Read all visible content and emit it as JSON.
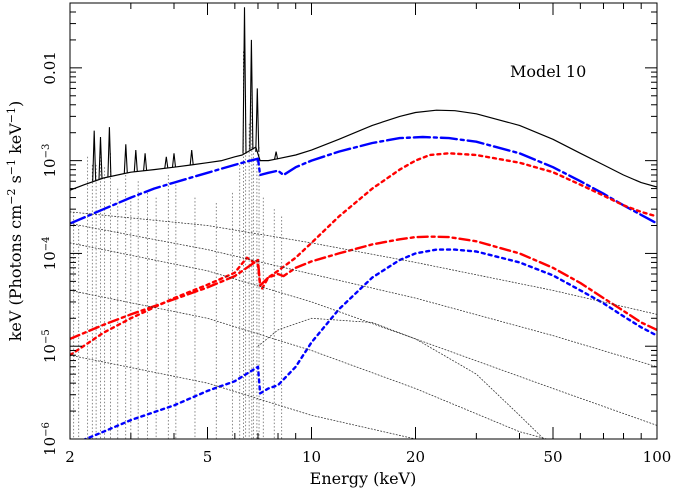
{
  "chart_data": {
    "type": "line",
    "annotation": "Model 10",
    "xlabel": "Energy (keV)",
    "ylabel": {
      "prefix": "keV (Photons cm",
      "sup1": "−2",
      "mid1": " s",
      "sup2": "−1",
      "mid2": " keV",
      "sup3": "−1",
      "suffix": ")"
    },
    "x_scale": "log",
    "y_scale": "log",
    "xlim": [
      2,
      100
    ],
    "ylim": [
      1e-06,
      0.05
    ],
    "x_ticks": [
      {
        "value": 2,
        "label": "2"
      },
      {
        "value": 5,
        "label": "5"
      },
      {
        "value": 10,
        "label": "10"
      },
      {
        "value": 20,
        "label": "20"
      },
      {
        "value": 50,
        "label": "50"
      },
      {
        "value": 100,
        "label": "100"
      }
    ],
    "y_ticks": [
      {
        "value": 1e-06,
        "base": "10",
        "exp": "−6"
      },
      {
        "value": 1e-05,
        "base": "10",
        "exp": "−5"
      },
      {
        "value": 0.0001,
        "base": "10",
        "exp": "−4"
      },
      {
        "value": 0.001,
        "base": "10",
        "exp": "−3"
      },
      {
        "value": 0.01,
        "base": "0.01",
        "exp": ""
      }
    ],
    "grid": false,
    "legend": "none",
    "series": [
      {
        "id": "total",
        "color": "#000000",
        "style": "solid",
        "points": [
          [
            2,
            0.00048
          ],
          [
            2.2,
            0.00055
          ],
          [
            2.5,
            0.00065
          ],
          [
            3,
            0.00075
          ],
          [
            3.5,
            0.0008
          ],
          [
            4,
            0.00085
          ],
          [
            4.5,
            0.0009
          ],
          [
            5,
            0.00095
          ],
          [
            5.5,
            0.001
          ],
          [
            6,
            0.0011
          ],
          [
            6.3,
            0.00115
          ],
          [
            6.9,
            0.0014
          ],
          [
            7.1,
            0.001
          ],
          [
            7.5,
            0.001
          ],
          [
            8,
            0.00105
          ],
          [
            9,
            0.00115
          ],
          [
            10,
            0.0013
          ],
          [
            12,
            0.0017
          ],
          [
            15,
            0.0024
          ],
          [
            18,
            0.003
          ],
          [
            20,
            0.0033
          ],
          [
            23,
            0.0035
          ],
          [
            26,
            0.00345
          ],
          [
            30,
            0.0032
          ],
          [
            40,
            0.0024
          ],
          [
            50,
            0.0017
          ],
          [
            60,
            0.0012
          ],
          [
            70,
            0.0009
          ],
          [
            80,
            0.0007
          ],
          [
            90,
            0.00058
          ],
          [
            100,
            0.00052
          ]
        ],
        "spikes": [
          [
            2.35,
            0.0021
          ],
          [
            2.45,
            0.0018
          ],
          [
            2.6,
            0.0023
          ],
          [
            2.9,
            0.0015
          ],
          [
            3.1,
            0.0013
          ],
          [
            3.3,
            0.0012
          ],
          [
            3.8,
            0.0011
          ],
          [
            4.0,
            0.0012
          ],
          [
            4.5,
            0.0013
          ],
          [
            6.4,
            0.045
          ],
          [
            6.7,
            0.02
          ],
          [
            6.97,
            0.006
          ],
          [
            7.9,
            0.00125
          ]
        ]
      },
      {
        "id": "blue-upper",
        "color": "#0000ff",
        "style": "longdash",
        "points": [
          [
            2,
            0.00021
          ],
          [
            2.5,
            0.0003
          ],
          [
            3,
            0.0004
          ],
          [
            3.5,
            0.0005
          ],
          [
            4,
            0.00058
          ],
          [
            4.5,
            0.00066
          ],
          [
            5,
            0.00074
          ],
          [
            5.5,
            0.00082
          ],
          [
            6,
            0.0009
          ],
          [
            6.5,
            0.00098
          ],
          [
            7,
            0.00105
          ],
          [
            7.1,
            0.0007
          ],
          [
            7.5,
            0.00074
          ],
          [
            8,
            0.00078
          ],
          [
            8.3,
            0.0007
          ],
          [
            9,
            0.00085
          ],
          [
            10,
            0.001
          ],
          [
            12,
            0.00125
          ],
          [
            15,
            0.00155
          ],
          [
            18,
            0.00175
          ],
          [
            21,
            0.0018
          ],
          [
            25,
            0.00175
          ],
          [
            30,
            0.0016
          ],
          [
            40,
            0.0012
          ],
          [
            50,
            0.00085
          ],
          [
            60,
            0.0006
          ],
          [
            70,
            0.00044
          ],
          [
            80,
            0.00033
          ],
          [
            90,
            0.00026
          ],
          [
            100,
            0.00021
          ]
        ]
      },
      {
        "id": "red-upper",
        "color": "#ff0000",
        "style": "dotted",
        "points": [
          [
            7.2,
            4.2e-05
          ],
          [
            7.5,
            5.5e-05
          ],
          [
            8,
            6.5e-05
          ],
          [
            9,
            9e-05
          ],
          [
            10,
            0.00013
          ],
          [
            12,
            0.00025
          ],
          [
            15,
            0.0005
          ],
          [
            18,
            0.0008
          ],
          [
            20,
            0.001
          ],
          [
            22,
            0.00115
          ],
          [
            25,
            0.0012
          ],
          [
            30,
            0.00115
          ],
          [
            40,
            0.00095
          ],
          [
            50,
            0.00075
          ],
          [
            60,
            0.00055
          ],
          [
            70,
            0.00042
          ],
          [
            80,
            0.00033
          ],
          [
            90,
            0.00028
          ],
          [
            100,
            0.00025
          ]
        ]
      },
      {
        "id": "red-mid",
        "color": "#ff0000",
        "style": "dashdot",
        "points": [
          [
            2,
            1.2e-05
          ],
          [
            2.5,
            1.7e-05
          ],
          [
            3,
            2.2e-05
          ],
          [
            4,
            3.2e-05
          ],
          [
            5,
            4.3e-05
          ],
          [
            6,
            5.7e-05
          ],
          [
            7,
            8.5e-05
          ],
          [
            7.1,
            4.5e-05
          ],
          [
            7.5,
            5.5e-05
          ],
          [
            8,
            6e-05
          ],
          [
            8.3,
            5.7e-05
          ],
          [
            9,
            7e-05
          ],
          [
            10,
            8.2e-05
          ],
          [
            12,
            0.0001
          ],
          [
            15,
            0.000125
          ],
          [
            18,
            0.000142
          ],
          [
            20,
            0.00015
          ],
          [
            22,
            0.000152
          ],
          [
            25,
            0.00015
          ],
          [
            30,
            0.000135
          ],
          [
            40,
            0.0001
          ],
          [
            50,
            7e-05
          ],
          [
            60,
            4.8e-05
          ],
          [
            70,
            3.3e-05
          ],
          [
            80,
            2.4e-05
          ],
          [
            90,
            1.8e-05
          ],
          [
            100,
            1.5e-05
          ]
        ]
      },
      {
        "id": "red-lower",
        "color": "#ff0000",
        "style": "dotted",
        "points": [
          [
            2,
            8e-06
          ],
          [
            2.5,
            1.4e-05
          ],
          [
            3,
            2e-05
          ],
          [
            4,
            3.3e-05
          ],
          [
            5,
            4.6e-05
          ],
          [
            6,
            6.2e-05
          ],
          [
            6.5,
            9e-05
          ],
          [
            7,
            7.5e-05
          ],
          [
            7.1,
            4.5e-05
          ]
        ]
      },
      {
        "id": "blue-lower",
        "color": "#0000ff",
        "style": "dotted",
        "points": [
          [
            2,
            8.5e-07
          ],
          [
            2.5,
            1.2e-06
          ],
          [
            3,
            1.6e-06
          ],
          [
            4,
            2.3e-06
          ],
          [
            5,
            3.3e-06
          ],
          [
            6,
            4.2e-06
          ],
          [
            7,
            6e-06
          ],
          [
            7.1,
            3.1e-06
          ],
          [
            7.5,
            3.5e-06
          ],
          [
            8,
            3.8e-06
          ],
          [
            9,
            6e-06
          ],
          [
            10,
            1.1e-05
          ],
          [
            12,
            2.5e-05
          ],
          [
            15,
            5.5e-05
          ],
          [
            18,
            8.5e-05
          ],
          [
            20,
            0.0001
          ],
          [
            23,
            0.00011
          ],
          [
            26,
            0.00011
          ],
          [
            30,
            0.000105
          ],
          [
            40,
            8e-05
          ],
          [
            50,
            5.8e-05
          ],
          [
            60,
            4e-05
          ],
          [
            70,
            2.9e-05
          ],
          [
            80,
            2.1e-05
          ],
          [
            90,
            1.6e-05
          ],
          [
            100,
            1.3e-05
          ]
        ]
      },
      {
        "id": "thin-1",
        "color": "#333333",
        "style": "thin",
        "points": [
          [
            2,
            0.00028
          ],
          [
            5,
            0.0002
          ],
          [
            10,
            0.00013
          ],
          [
            20,
            8e-05
          ],
          [
            50,
            4e-05
          ],
          [
            100,
            2.2e-05
          ]
        ]
      },
      {
        "id": "thin-2",
        "color": "#333333",
        "style": "thin",
        "points": [
          [
            2,
            0.00021
          ],
          [
            5,
            0.00011
          ],
          [
            10,
            6e-05
          ],
          [
            20,
            3.3e-05
          ],
          [
            50,
            1.3e-05
          ],
          [
            100,
            6e-06
          ]
        ]
      },
      {
        "id": "thin-3",
        "color": "#333333",
        "style": "thin",
        "points": [
          [
            2,
            0.00013
          ],
          [
            5,
            6.5e-05
          ],
          [
            10,
            3e-05
          ],
          [
            20,
            1.2e-05
          ],
          [
            50,
            3.5e-06
          ],
          [
            100,
            1.4e-06
          ]
        ]
      },
      {
        "id": "thin-4",
        "color": "#333333",
        "style": "thin",
        "points": [
          [
            2,
            4e-05
          ],
          [
            5,
            2e-05
          ],
          [
            10,
            9e-06
          ],
          [
            20,
            3.5e-06
          ],
          [
            40,
            1.2e-06
          ],
          [
            60,
            8e-07
          ]
        ]
      },
      {
        "id": "thin-5",
        "color": "#333333",
        "style": "thin",
        "points": [
          [
            2,
            8e-06
          ],
          [
            5,
            4e-06
          ],
          [
            10,
            1.8e-06
          ],
          [
            20,
            1e-06
          ],
          [
            25,
            8e-07
          ]
        ]
      },
      {
        "id": "thin-6",
        "color": "#333333",
        "style": "thin",
        "points": [
          [
            7,
            1e-05
          ],
          [
            8,
            1.5e-05
          ],
          [
            10,
            2e-05
          ],
          [
            15,
            1.8e-05
          ],
          [
            20,
            1.2e-05
          ],
          [
            30,
            5e-06
          ],
          [
            40,
            1.8e-06
          ],
          [
            50,
            8e-07
          ]
        ]
      }
    ],
    "line_forest": {
      "color": "#555555",
      "top": [
        [
          2.05,
          0.00028
        ],
        [
          2.12,
          0.0002
        ],
        [
          2.25,
          0.0011
        ],
        [
          2.32,
          0.0009
        ],
        [
          2.38,
          0.0009
        ],
        [
          2.45,
          0.0012
        ],
        [
          2.52,
          0.00085
        ],
        [
          2.62,
          0.0012
        ],
        [
          2.75,
          0.0005
        ],
        [
          2.9,
          0.0007
        ],
        [
          3.0,
          0.0004
        ],
        [
          3.15,
          0.0006
        ],
        [
          3.35,
          0.00045
        ],
        [
          3.55,
          0.0004
        ],
        [
          3.85,
          0.0007
        ],
        [
          4.05,
          0.0006
        ],
        [
          4.6,
          0.0004
        ],
        [
          5.3,
          0.00035
        ],
        [
          5.9,
          0.00045
        ],
        [
          6.2,
          0.0009
        ],
        [
          6.35,
          0.015
        ],
        [
          6.45,
          0.005
        ],
        [
          6.6,
          0.0025
        ],
        [
          6.72,
          0.008
        ],
        [
          6.8,
          0.0012
        ],
        [
          6.95,
          0.001
        ],
        [
          7.05,
          0.0014
        ],
        [
          7.25,
          0.0004
        ],
        [
          7.8,
          0.0003
        ],
        [
          8.2,
          0.00025
        ]
      ]
    }
  }
}
